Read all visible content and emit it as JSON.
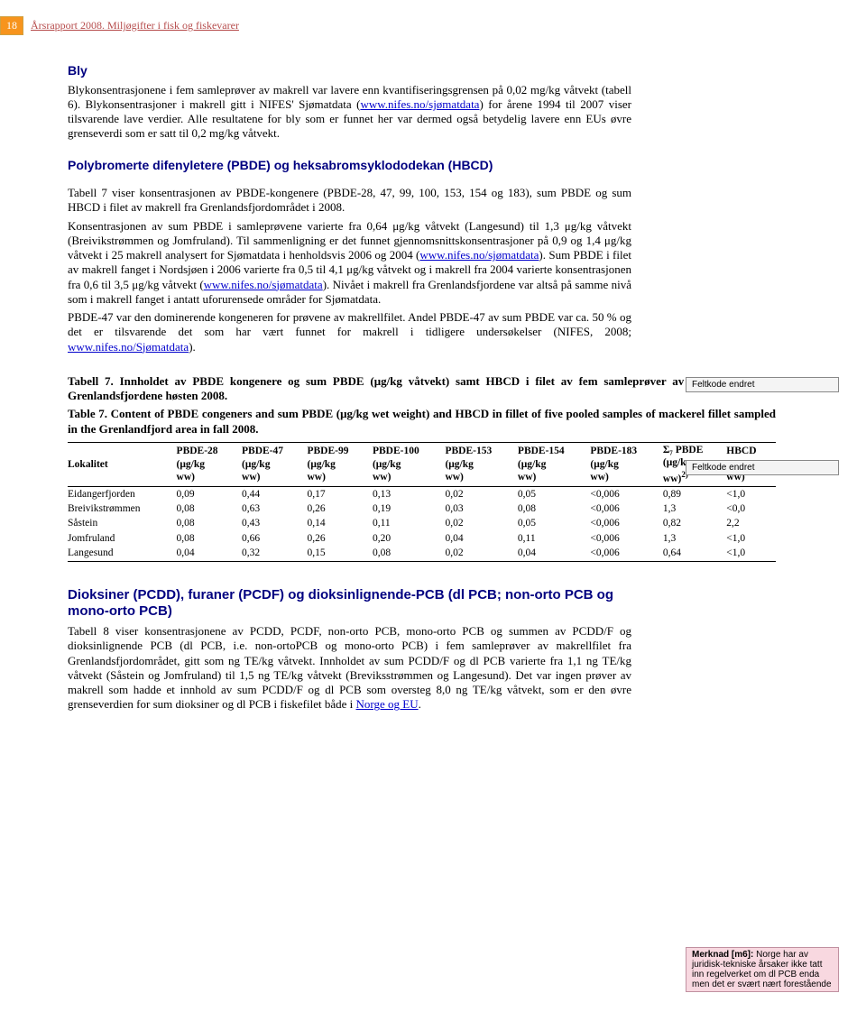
{
  "header": {
    "page_number": "18",
    "title": "Årsrapport 2008. Miljøgifter i fisk og fiskevarer"
  },
  "section_bly": {
    "heading": "Bly",
    "p1a": "Blykonsentrasjonene i fem samleprøver av makrell var lavere enn kvantifiseringsgrensen på 0,02 mg/kg våtvekt (tabell 6). Blykonsentrasjoner i makrell gitt i NIFES' Sjømatdata (",
    "p1_link": "www.nifes.no/sjømatdata",
    "p1b": ") for årene 1994 til 2007 viser tilsvarende lave verdier. Alle resultatene for bly som er funnet her var dermed også betydelig lavere enn EUs øvre grenseverdi som er satt til 0,2 mg/kg våtvekt."
  },
  "section_pbde": {
    "heading": "Polybromerte difenyletere (PBDE) og heksabromsyklododekan (HBCD)",
    "p1": "Tabell 7 viser konsentrasjonen av PBDE-kongenere (PBDE-28, 47, 99, 100, 153, 154 og 183), sum PBDE og sum HBCD i filet av makrell fra Grenlandsfjordområdet i 2008.",
    "p2a": "Konsentrasjonen av sum PBDE i samleprøvene varierte fra 0,64 μg/kg våtvekt (Langesund) til 1,3 μg/kg våtvekt (Breivikstrømmen og Jomfruland). Til sammenligning er det funnet gjennomsnittskonsentrasjoner på 0,9 og 1,4 μg/kg våtvekt i 25 makrell analysert for Sjømatdata i henholdsvis 2006 og 2004 (",
    "p2_link1": "www.nifes.no/sjømatdata",
    "p2b": "). Sum PBDE i filet av makrell fanget i Nordsjøen i 2006 varierte fra 0,5 til 4,1 μg/kg våtvekt og i makrell fra 2004 varierte konsentrasjonen fra 0,6 til 3,5 μg/kg våtvekt (",
    "p2_link2": "www.nifes.no/sjømatdata",
    "p2c": "). Nivået i makrell fra Grenlandsfjordene var altså på samme nivå som i makrell fanget i antatt uforurensede områder for Sjømatdata.",
    "p3a": "PBDE-47 var den dominerende kongeneren for prøvene av makrellfilet. Andel PBDE-47 av sum PBDE var ca. 50 % og det er tilsvarende det som har vært funnet for makrell i tidligere undersøkelser (NIFES, 2008; ",
    "p3_link": "www.nifes.no/Sjømatdata",
    "p3b": ")."
  },
  "table7": {
    "caption_no": "Tabell 7. Innholdet av PBDE kongenere og sum PBDE (μg/kg våtvekt) samt HBCD i filet av fem samleprøver av makrell fanget i Grenlandsfjordene høsten 2008.",
    "caption_en": "Table 7. Content of PBDE congeners and sum PBDE (μg/kg wet weight) and HBCD in fillet of five pooled samples of mackerel fillet sampled in the Grenlandfjord area in fall 2008.",
    "headers": {
      "c0": "Lokalitet",
      "c1a": "PBDE-28",
      "c1b": "(μg/kg",
      "c1c": "ww)",
      "c2a": "PBDE-47",
      "c2b": "(μg/kg",
      "c2c": "ww)",
      "c3a": "PBDE-99",
      "c3b": "(μg/kg",
      "c3c": "ww)",
      "c4a": "PBDE-100",
      "c4b": "(μg/kg",
      "c4c": "ww)",
      "c5a": "PBDE-153",
      "c5b": "(μg/kg",
      "c5c": "ww)",
      "c6a": "PBDE-154",
      "c6b": "(μg/kg",
      "c6c": "ww)",
      "c7a": "PBDE-183",
      "c7b": "(μg/kg",
      "c7c": "ww)",
      "c8a": "Σ₇ PBDE",
      "c8b": "(μg/kg",
      "c8c": "ww)",
      "c8sup": "2)",
      "c9a": "HBCD",
      "c9b": "(μg/kg",
      "c9c": "ww)"
    },
    "rows": [
      {
        "loc": "Eidangerfjorden",
        "v": [
          "0,09",
          "0,44",
          "0,17",
          "0,13",
          "0,02",
          "0,05",
          "<0,006",
          "0,89",
          "<1,0"
        ]
      },
      {
        "loc": "Breivikstrømmen",
        "v": [
          "0,08",
          "0,63",
          "0,26",
          "0,19",
          "0,03",
          "0,08",
          "<0,006",
          "1,3",
          "<0,0"
        ]
      },
      {
        "loc": "Såstein",
        "v": [
          "0,08",
          "0,43",
          "0,14",
          "0,11",
          "0,02",
          "0,05",
          "<0,006",
          "0,82",
          "2,2"
        ]
      },
      {
        "loc": "Jomfruland",
        "v": [
          "0,08",
          "0,66",
          "0,26",
          "0,20",
          "0,04",
          "0,11",
          "<0,006",
          "1,3",
          "<1,0"
        ]
      },
      {
        "loc": "Langesund",
        "v": [
          "0,04",
          "0,32",
          "0,15",
          "0,08",
          "0,02",
          "0,04",
          "<0,006",
          "0,64",
          "<1,0"
        ]
      }
    ]
  },
  "section_dioxin": {
    "heading": "Dioksiner (PCDD), furaner (PCDF) og dioksinlignende-PCB (dl PCB; non-orto PCB og mono-orto PCB)",
    "p1a": "Tabell 8 viser konsentrasjonene av PCDD, PCDF, non-orto PCB, mono-orto PCB og summen av PCDD/F og dioksinlignende PCB (dl PCB, i.e. non-ortoPCB og mono-orto PCB) i fem samleprøver av makrellfilet fra Grenlandsfjordområdet, gitt som ng TE/kg våtvekt. Innholdet av sum PCDD/F og dl PCB varierte fra 1,1 ng TE/kg våtvekt (Såstein og Jomfruland) til 1,5 ng TE/kg våtvekt (Breviksstrømmen og Langesund). Det var ingen prøver av makrell som hadde et innhold av sum PCDD/F og dl PCB som oversteg 8,0 ng TE/kg våtvekt, som er den øvre grenseverdien for sum dioksiner og dl PCB i fiskefilet både i ",
    "p1_link": "Norge og EU",
    "p1b": "."
  },
  "comments": {
    "c1": "Feltkode endret",
    "c2": "Feltkode endret",
    "c3_title": "Merknad [m6]:",
    "c3_body": " Norge har av juridisk-tekniske årsaker ikke tatt inn regelverket om dl PCB enda men det er svært nært forestående"
  }
}
